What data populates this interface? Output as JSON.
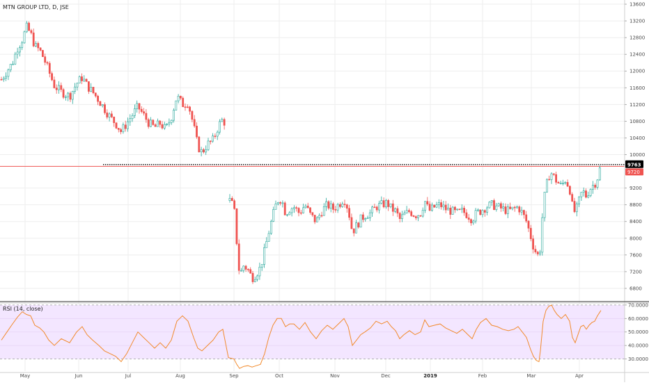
{
  "chart_data": [
    {
      "type": "candlestick",
      "title": "MTN GROUP LTD, D, JSE",
      "ylim": [
        6500,
        13700
      ],
      "yticks": [
        6800,
        7200,
        7600,
        8000,
        8400,
        8800,
        9200,
        10000,
        10400,
        10800,
        11200,
        11600,
        12000,
        12400,
        12800,
        13200,
        13600
      ],
      "ytick_labels": [
        "6800",
        "7200",
        "7600",
        "8000",
        "8400",
        "8800",
        "9200",
        "10000",
        "10400",
        "10800",
        "11200",
        "11600",
        "12000",
        "12400",
        "12800",
        "13200",
        "13600"
      ],
      "x_months": [
        {
          "label": "May",
          "t": 36
        },
        {
          "label": "Jun",
          "t": 113
        },
        {
          "label": "Jul",
          "t": 184
        },
        {
          "label": "Aug",
          "t": 259
        },
        {
          "label": "Sep",
          "t": 336
        },
        {
          "label": "Oct",
          "t": 401
        },
        {
          "label": "Nov",
          "t": 481
        },
        {
          "label": "Dec",
          "t": 554
        },
        {
          "label": "2019",
          "t": 618,
          "bold": true
        },
        {
          "label": "Feb",
          "t": 693
        },
        {
          "label": "Mar",
          "t": 763
        },
        {
          "label": "Apr",
          "t": 832
        }
      ],
      "segments": [
        {
          "t_start": 2,
          "t_end": 323,
          "points": [
            [
              2,
              11800
            ],
            [
              10,
              12000
            ],
            [
              18,
              12200
            ],
            [
              25,
              12550
            ],
            [
              32,
              12750
            ],
            [
              38,
              13050
            ],
            [
              44,
              12900
            ],
            [
              50,
              12600
            ],
            [
              57,
              12500
            ],
            [
              63,
              12300
            ],
            [
              70,
              12000
            ],
            [
              78,
              11650
            ],
            [
              88,
              11500
            ],
            [
              100,
              11400
            ],
            [
              110,
              11700
            ],
            [
              118,
              11850
            ],
            [
              125,
              11650
            ],
            [
              133,
              11500
            ],
            [
              142,
              11300
            ],
            [
              150,
              11100
            ],
            [
              158,
              10900
            ],
            [
              166,
              10750
            ],
            [
              174,
              10550
            ],
            [
              182,
              10750
            ],
            [
              190,
              10950
            ],
            [
              198,
              11150
            ],
            [
              206,
              10950
            ],
            [
              214,
              10750
            ],
            [
              222,
              10650
            ],
            [
              230,
              10750
            ],
            [
              238,
              10600
            ],
            [
              246,
              10900
            ],
            [
              254,
              11400
            ],
            [
              262,
              11200
            ],
            [
              270,
              11250
            ],
            [
              278,
              10700
            ],
            [
              284,
              10200
            ],
            [
              290,
              10050
            ],
            [
              298,
              10250
            ],
            [
              306,
              10350
            ],
            [
              314,
              10700
            ],
            [
              320,
              10850
            ],
            [
              323,
              10750
            ]
          ]
        },
        {
          "t_start": 330,
          "t_end": 863,
          "points": [
            [
              330,
              8900
            ],
            [
              336,
              8750
            ],
            [
              340,
              7900
            ],
            [
              344,
              7100
            ],
            [
              350,
              7350
            ],
            [
              356,
              7250
            ],
            [
              362,
              7050
            ],
            [
              368,
              7150
            ],
            [
              374,
              7300
            ],
            [
              380,
              7700
            ],
            [
              386,
              8150
            ],
            [
              392,
              8550
            ],
            [
              398,
              8900
            ],
            [
              404,
              8950
            ],
            [
              410,
              8600
            ],
            [
              416,
              8700
            ],
            [
              422,
              8750
            ],
            [
              430,
              8600
            ],
            [
              438,
              8800
            ],
            [
              446,
              8550
            ],
            [
              454,
              8400
            ],
            [
              462,
              8650
            ],
            [
              470,
              8800
            ],
            [
              478,
              8700
            ],
            [
              486,
              8800
            ],
            [
              494,
              8950
            ],
            [
              500,
              8700
            ],
            [
              506,
              8150
            ],
            [
              512,
              8300
            ],
            [
              518,
              8450
            ],
            [
              524,
              8550
            ],
            [
              532,
              8600
            ],
            [
              540,
              8750
            ],
            [
              548,
              8800
            ],
            [
              556,
              8850
            ],
            [
              562,
              8700
            ],
            [
              568,
              8650
            ],
            [
              574,
              8450
            ],
            [
              580,
              8550
            ],
            [
              588,
              8650
            ],
            [
              596,
              8550
            ],
            [
              604,
              8600
            ],
            [
              610,
              8900
            ],
            [
              616,
              8650
            ],
            [
              624,
              8750
            ],
            [
              632,
              8800
            ],
            [
              640,
              8700
            ],
            [
              648,
              8650
            ],
            [
              656,
              8600
            ],
            [
              664,
              8650
            ],
            [
              672,
              8550
            ],
            [
              678,
              8450
            ],
            [
              684,
              8600
            ],
            [
              690,
              8650
            ],
            [
              698,
              8750
            ],
            [
              706,
              8800
            ],
            [
              714,
              8750
            ],
            [
              722,
              8700
            ],
            [
              730,
              8650
            ],
            [
              738,
              8700
            ],
            [
              744,
              8750
            ],
            [
              750,
              8600
            ],
            [
              756,
              8400
            ],
            [
              762,
              8050
            ],
            [
              766,
              7800
            ],
            [
              770,
              7650
            ],
            [
              774,
              7550
            ],
            [
              776,
              7800
            ],
            [
              780,
              8800
            ],
            [
              784,
              9200
            ],
            [
              788,
              9500
            ],
            [
              792,
              9550
            ],
            [
              796,
              9450
            ],
            [
              800,
              9350
            ],
            [
              806,
              9250
            ],
            [
              812,
              9400
            ],
            [
              818,
              9200
            ],
            [
              822,
              8750
            ],
            [
              826,
              8600
            ],
            [
              830,
              8800
            ],
            [
              834,
              9050
            ],
            [
              838,
              9100
            ],
            [
              842,
              9000
            ],
            [
              846,
              9150
            ],
            [
              850,
              9250
            ],
            [
              854,
              9300
            ],
            [
              858,
              9450
            ],
            [
              863,
              9750
            ]
          ]
        }
      ],
      "annotations": {
        "last_price_label": "9763",
        "last_price_value": 9763,
        "red_line_label": "9720",
        "red_line_value": 9720,
        "dotted_line_value": 9763
      },
      "colors": {
        "up": "#26a69a",
        "down": "#ef5350",
        "red_line": "#ef5350",
        "grid": "#eeeeee"
      }
    },
    {
      "type": "line",
      "title": "RSI (14, close)",
      "ylim": [
        21,
        71.5
      ],
      "yticks": [
        30,
        40,
        50,
        60,
        70
      ],
      "ytick_labels": [
        "30.0000",
        "40.0000",
        "50.0000",
        "60.0000",
        "70.0000"
      ],
      "bands": {
        "upper": 70,
        "lower": 30,
        "fill": "#f3e6ff"
      },
      "series": [
        {
          "color": "#f28a2c",
          "points": [
            [
              2,
              44
            ],
            [
              10,
              50
            ],
            [
              18,
              56
            ],
            [
              25,
              61
            ],
            [
              32,
              65
            ],
            [
              38,
              63
            ],
            [
              44,
              62
            ],
            [
              50,
              55
            ],
            [
              57,
              53
            ],
            [
              63,
              50
            ],
            [
              70,
              44
            ],
            [
              78,
              40
            ],
            [
              88,
              45
            ],
            [
              100,
              42
            ],
            [
              110,
              50
            ],
            [
              118,
              54
            ],
            [
              125,
              48
            ],
            [
              133,
              44
            ],
            [
              142,
              40
            ],
            [
              150,
              36
            ],
            [
              158,
              34
            ],
            [
              166,
              32
            ],
            [
              174,
              28
            ],
            [
              182,
              34
            ],
            [
              190,
              42
            ],
            [
              198,
              50
            ],
            [
              206,
              46
            ],
            [
              214,
              42
            ],
            [
              222,
              38
            ],
            [
              230,
              42
            ],
            [
              238,
              38
            ],
            [
              246,
              44
            ],
            [
              254,
              58
            ],
            [
              262,
              62
            ],
            [
              270,
              58
            ],
            [
              278,
              46
            ],
            [
              284,
              38
            ],
            [
              290,
              36
            ],
            [
              298,
              40
            ],
            [
              306,
              44
            ],
            [
              314,
              50
            ],
            [
              320,
              52
            ],
            [
              328,
              31
            ],
            [
              336,
              30
            ],
            [
              340,
              26
            ],
            [
              344,
              23
            ],
            [
              350,
              24.5
            ],
            [
              356,
              25
            ],
            [
              362,
              24
            ],
            [
              368,
              25
            ],
            [
              374,
              26
            ],
            [
              380,
              34
            ],
            [
              386,
              46
            ],
            [
              392,
              55
            ],
            [
              398,
              60
            ],
            [
              404,
              60
            ],
            [
              410,
              54
            ],
            [
              416,
              56
            ],
            [
              422,
              56
            ],
            [
              430,
              52
            ],
            [
              438,
              57
            ],
            [
              446,
              50
            ],
            [
              454,
              45
            ],
            [
              462,
              51
            ],
            [
              470,
              55
            ],
            [
              478,
              52
            ],
            [
              486,
              56
            ],
            [
              494,
              60
            ],
            [
              500,
              54
            ],
            [
              506,
              40
            ],
            [
              512,
              44
            ],
            [
              518,
              48
            ],
            [
              524,
              50
            ],
            [
              532,
              53
            ],
            [
              540,
              58
            ],
            [
              548,
              56
            ],
            [
              556,
              58
            ],
            [
              562,
              54
            ],
            [
              568,
              51
            ],
            [
              574,
              45
            ],
            [
              580,
              48
            ],
            [
              588,
              51
            ],
            [
              596,
              48
            ],
            [
              604,
              50
            ],
            [
              610,
              59
            ],
            [
              616,
              54
            ],
            [
              624,
              55
            ],
            [
              632,
              56
            ],
            [
              640,
              53
            ],
            [
              648,
              51
            ],
            [
              656,
              49
            ],
            [
              664,
              52
            ],
            [
              672,
              48
            ],
            [
              678,
              45
            ],
            [
              684,
              52
            ],
            [
              690,
              57
            ],
            [
              698,
              60
            ],
            [
              706,
              55
            ],
            [
              714,
              54
            ],
            [
              722,
              52
            ],
            [
              730,
              51
            ],
            [
              738,
              52
            ],
            [
              744,
              54
            ],
            [
              750,
              50
            ],
            [
              756,
              46
            ],
            [
              762,
              37
            ],
            [
              766,
              32
            ],
            [
              770,
              29
            ],
            [
              774,
              28
            ],
            [
              776,
              36
            ],
            [
              780,
              58
            ],
            [
              784,
              66
            ],
            [
              788,
              69
            ],
            [
              792,
              70
            ],
            [
              796,
              66
            ],
            [
              800,
              63
            ],
            [
              806,
              60
            ],
            [
              812,
              63
            ],
            [
              818,
              58
            ],
            [
              822,
              46
            ],
            [
              826,
              42
            ],
            [
              830,
              48
            ],
            [
              834,
              54
            ],
            [
              838,
              55
            ],
            [
              842,
              52
            ],
            [
              846,
              55
            ],
            [
              850,
              57
            ],
            [
              854,
              58
            ],
            [
              858,
              62
            ],
            [
              863,
              66
            ]
          ]
        }
      ]
    }
  ]
}
